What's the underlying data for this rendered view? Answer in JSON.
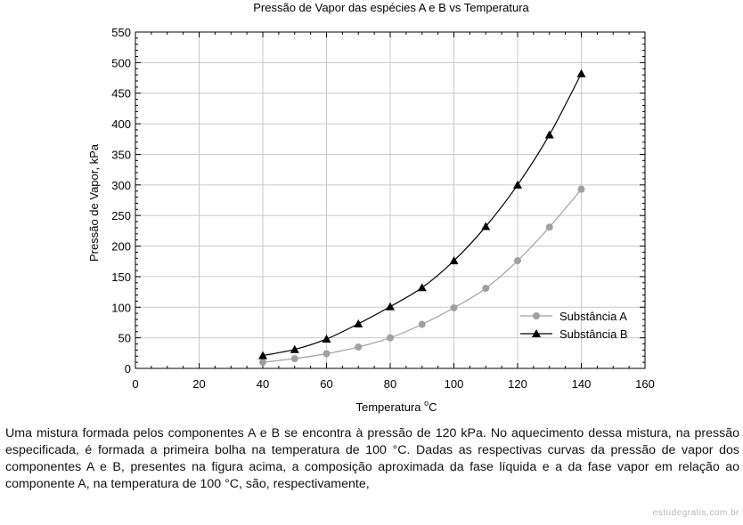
{
  "chart_data": {
    "type": "line",
    "title": "Pressão de Vapor das espécies A e B vs Temperatura",
    "xlabel_main": "Temperatura ",
    "xlabel_sup": "o",
    "xlabel_unit": "C",
    "ylabel": "Pressão de Vapor, kPa",
    "xlim": [
      0,
      160
    ],
    "ylim": [
      0,
      550
    ],
    "xticks": [
      0,
      20,
      40,
      60,
      80,
      100,
      120,
      140,
      160
    ],
    "yticks": [
      0,
      50,
      100,
      150,
      200,
      250,
      300,
      350,
      400,
      450,
      500,
      550
    ],
    "grid": true,
    "legend_position": "bottom-right",
    "x": [
      40,
      50,
      60,
      70,
      80,
      90,
      100,
      110,
      120,
      130,
      140
    ],
    "series": [
      {
        "name": "Substância A",
        "marker": "circle",
        "color": "#a0a0a0",
        "values": [
          10,
          16,
          24,
          35,
          50,
          72,
          99,
          131,
          176,
          231,
          293
        ]
      },
      {
        "name": "Substância B",
        "marker": "triangle",
        "color": "#000000",
        "values": [
          21,
          31,
          48,
          73,
          101,
          132,
          176,
          232,
          300,
          382,
          482
        ]
      }
    ]
  },
  "question": {
    "text": "Uma mistura formada pelos componentes A e B se encontra à pressão de 120 kPa. No aquecimento dessa mistura, na pressão especificada, é formada a primeira bolha na temperatura de 100 °C. Dadas as respectivas curvas da pressão de vapor dos componentes A e B, presentes na figura acima, a composição aproximada da fase líquida e a da fase vapor em relação ao componente A, na temperatura de 100 °C, são, respectivamente,"
  },
  "watermark": "estudegratis.com.br"
}
